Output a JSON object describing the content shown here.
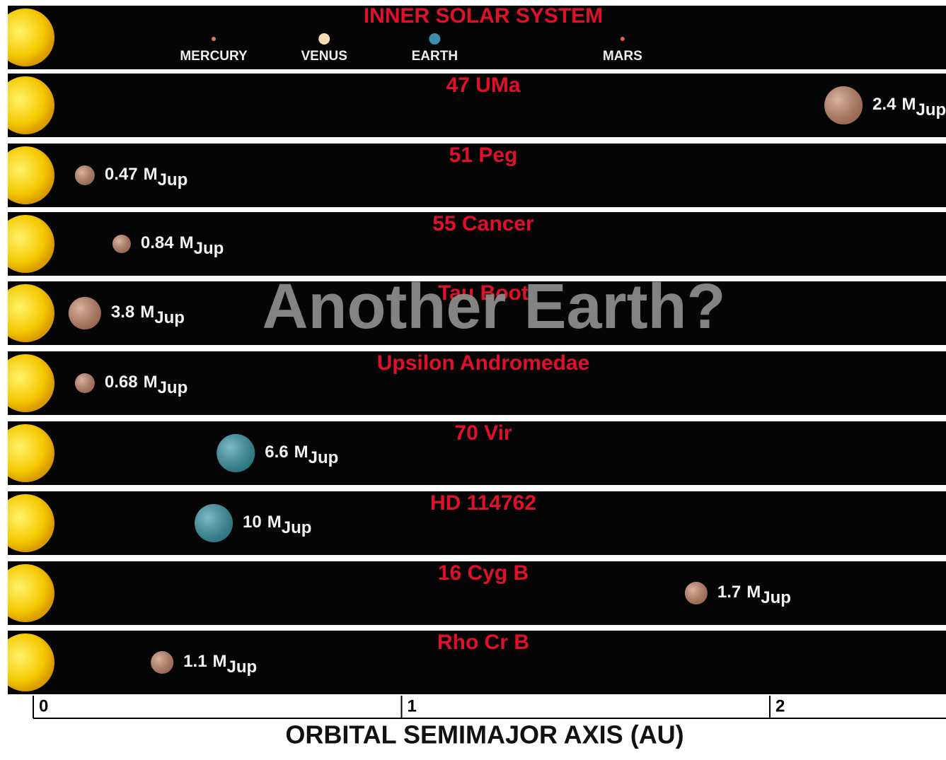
{
  "inner": {
    "title": "INNER SOLAR SYSTEM",
    "planets": [
      {
        "name": "MERCURY",
        "a": 0.49,
        "color": "#e07a4a"
      },
      {
        "name": "VENUS",
        "a": 0.79,
        "color": "#f6dcb0"
      },
      {
        "name": "EARTH",
        "a": 1.09,
        "color": "#3d8ea8"
      },
      {
        "name": "MARS",
        "a": 1.6,
        "color": "#e0603a"
      }
    ]
  },
  "systems": [
    {
      "name": "47 UMa",
      "a": 2.2,
      "mass": 2.4,
      "color": "#c98a6e"
    },
    {
      "name": "51 Peg",
      "a": 0.14,
      "mass": 0.47,
      "color": "#c98a6e"
    },
    {
      "name": "55 Cancer",
      "a": 0.24,
      "mass": 0.84,
      "color": "#c98a6e"
    },
    {
      "name": "Tau Boot",
      "a": 0.14,
      "mass": 3.8,
      "color": "#c98a6e"
    },
    {
      "name": "Upsilon Andromedae",
      "a": 0.14,
      "mass": 0.68,
      "color": "#c98a6e"
    },
    {
      "name": "70 Vir",
      "a": 0.55,
      "mass": 6.6,
      "color": "#3a9aa8"
    },
    {
      "name": "HD 114762",
      "a": 0.49,
      "mass": 10,
      "color": "#3a9aa8"
    },
    {
      "name": "16 Cyg B",
      "a": 1.8,
      "mass": 1.7,
      "color": "#c98a6e"
    },
    {
      "name": "Rho Cr B",
      "a": 0.35,
      "mass": 1.1,
      "color": "#c98a6e"
    }
  ],
  "mass_unit": "M",
  "mass_unit_sub": "Jup",
  "axis": {
    "title": "ORBITAL SEMIMAJOR AXIS (AU)",
    "ticks": [
      0,
      1,
      2
    ]
  },
  "overlay": "Another Earth?"
}
